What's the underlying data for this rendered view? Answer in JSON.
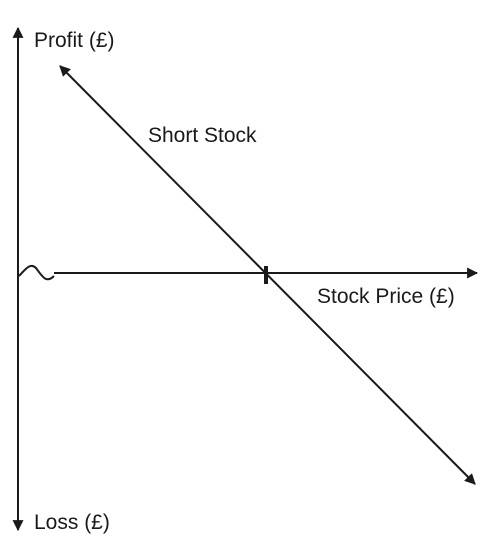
{
  "labels": {
    "y_axis_top": "Profit (£)",
    "y_axis_bottom": "Loss (£)",
    "x_axis": "Stock Price (£)",
    "payoff_line": "Short Stock"
  },
  "colors": {
    "ink": "#1a1a1a",
    "background": "#ffffff"
  }
}
